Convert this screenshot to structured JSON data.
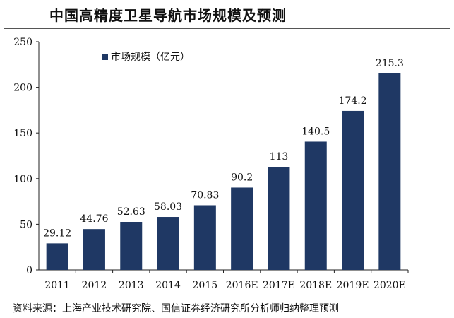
{
  "chart_data": {
    "type": "bar",
    "title": "中国高精度卫星导航市场规模及预测",
    "categories": [
      "2011",
      "2012",
      "2013",
      "2014",
      "2015",
      "2016E",
      "2017E",
      "2018E",
      "2019E",
      "2020E"
    ],
    "series": [
      {
        "name": "市场规模（亿元）",
        "values": [
          29.12,
          44.76,
          52.63,
          58.03,
          70.83,
          90.2,
          113,
          140.5,
          174.2,
          215.3
        ],
        "labels": [
          "29.12",
          "44.76",
          "52.63",
          "58.03",
          "70.83",
          "90.2",
          "113",
          "140.5",
          "174.2",
          "215.3"
        ],
        "color": "#1f3864"
      }
    ],
    "ylim": [
      0,
      250
    ],
    "yticks": [
      "0",
      "50",
      "100",
      "150",
      "200",
      "250"
    ],
    "xlabel": "",
    "ylabel": "",
    "grid": false,
    "legend_position": "top-left"
  },
  "source": "资料来源：上海产业技术研究院、国信证券经济研究所分析师归纳整理预测"
}
